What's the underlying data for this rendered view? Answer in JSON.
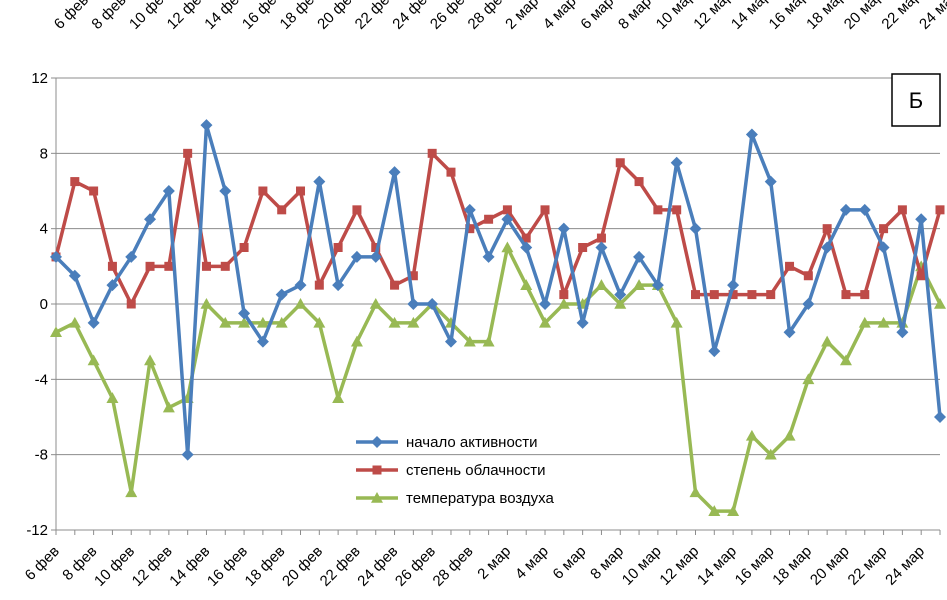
{
  "chart_data": {
    "type": "line",
    "panel_label": "Б",
    "ylim": [
      -12,
      12
    ],
    "yticks": [
      12,
      8,
      4,
      0,
      -4,
      -8,
      -12
    ],
    "ytick_labels": [
      "12",
      "8",
      "4",
      "0",
      "-4",
      "-8",
      "-12"
    ],
    "x": [
      "6 фев",
      "7 фев",
      "8 фев",
      "9 фев",
      "10 фев",
      "11 фев",
      "12 фев",
      "13 фев",
      "14 фев",
      "15 фев",
      "16 фев",
      "17 фев",
      "18 фев",
      "19 фев",
      "20 фев",
      "21 фев",
      "22 фев",
      "23 фев",
      "24 фев",
      "25 фев",
      "26 фев",
      "27 фев",
      "28 фев",
      "1 мар",
      "2 мар",
      "3 мар",
      "4 мар",
      "5 мар",
      "6 мар",
      "7 мар",
      "8 мар",
      "9 мар",
      "10 мар",
      "11 мар",
      "12 мар",
      "13 мар",
      "14 мар",
      "15 мар",
      "16 мар",
      "17 мар",
      "18 мар",
      "19 мар",
      "20 мар",
      "21 мар",
      "22 мар",
      "23 мар",
      "24 мар",
      "25 мар"
    ],
    "xtick_labels": [
      "6 фев",
      "8 фев",
      "10 фев",
      "12 фев",
      "14 фев",
      "16 фев",
      "18 фев",
      "20 фев",
      "22 фев",
      "24 фев",
      "26 фев",
      "28 фев",
      "2 мар",
      "4 мар",
      "6 мар",
      "8 мар",
      "10 мар",
      "12 мар",
      "14 мар",
      "16 мар",
      "18 мар",
      "20 мар",
      "22 мар",
      "24 мар"
    ],
    "xtick_positions": [
      0,
      2,
      4,
      6,
      8,
      10,
      12,
      14,
      16,
      18,
      20,
      22,
      24,
      26,
      28,
      30,
      32,
      34,
      36,
      38,
      40,
      42,
      44,
      46
    ],
    "grid": "horizontal",
    "legend_position": "center-bottom",
    "series": [
      {
        "name": "начало активности",
        "color": "#4a7ebb",
        "marker": "diamond",
        "values": [
          2.5,
          1.5,
          -1,
          1,
          2.5,
          4.5,
          6,
          -8,
          9.5,
          6,
          -0.5,
          -2,
          0.5,
          1,
          6.5,
          1,
          2.5,
          2.5,
          7,
          0,
          0,
          -2,
          5,
          2.5,
          4.5,
          3,
          0,
          4,
          -1,
          3,
          0.5,
          2.5,
          1,
          7.5,
          4,
          -2.5,
          1,
          9,
          6.5,
          -1.5,
          0,
          3,
          5,
          5,
          3,
          -1.5,
          4.5,
          -6
        ]
      },
      {
        "name": "степень облачности",
        "color": "#be4b48",
        "marker": "square",
        "values": [
          2.5,
          6.5,
          6,
          2,
          0,
          2,
          2,
          8,
          2,
          2,
          3,
          6,
          5,
          6,
          1,
          3,
          5,
          3,
          1,
          1.5,
          8,
          7,
          4,
          4.5,
          5,
          3.5,
          5,
          0.5,
          3,
          3.5,
          7.5,
          6.5,
          5,
          5,
          0.5,
          0.5,
          0.5,
          0.5,
          0.5,
          2,
          1.5,
          4,
          0.5,
          0.5,
          4,
          5,
          1.5,
          5
        ]
      },
      {
        "name": "температура воздуха",
        "color": "#98b954",
        "marker": "triangle",
        "values": [
          -1.5,
          -1,
          -3,
          -5,
          -10,
          -3,
          -5.5,
          -5,
          0,
          -1,
          -1,
          -1,
          -1,
          0,
          -1,
          -5,
          -2,
          0,
          -1,
          -1,
          0,
          -1,
          -2,
          -2,
          3,
          1,
          -1,
          0,
          0,
          1,
          0,
          1,
          1,
          -1,
          -10,
          -11,
          -11,
          -7,
          -8,
          -7,
          -4,
          -2,
          -3,
          -1,
          -1,
          -1,
          2,
          0
        ]
      }
    ]
  }
}
